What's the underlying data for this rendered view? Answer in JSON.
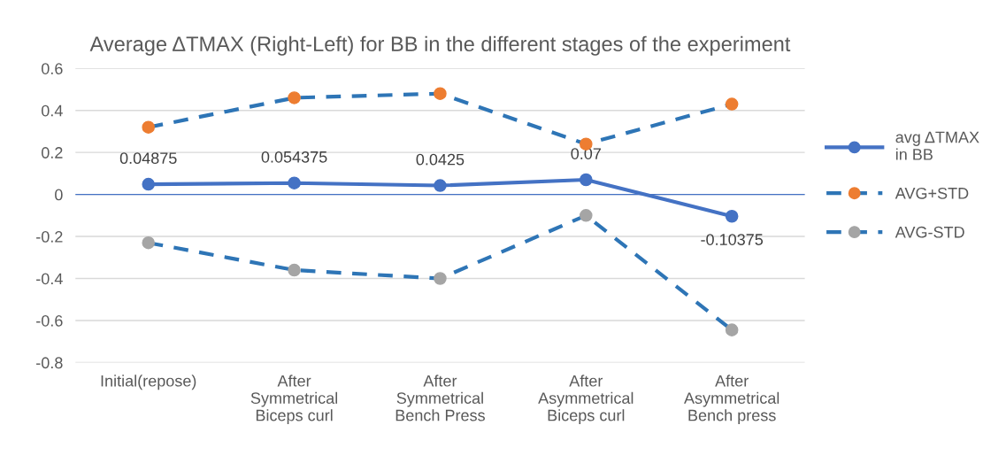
{
  "chart_data": {
    "type": "line",
    "title": "Average ΔTMAX (Right-Left) for BB in the different stages of the experiment",
    "categories": [
      "Initial(repose)",
      "After\nSymmetrical\nBiceps curl",
      "After\nSymmetrical\nBench Press",
      "After\nAsymmetrical\nBiceps curl",
      "After\nAsymmetrical\nBench press"
    ],
    "series": [
      {
        "name": "avg ΔTMAX\nin BB",
        "color": "#4472c4",
        "line_style": "solid",
        "values": [
          0.04875,
          0.054375,
          0.0425,
          0.07,
          -0.10375
        ],
        "value_labels": [
          "0.04875",
          "0.054375",
          "0.0425",
          "0.07",
          "-0.10375"
        ]
      },
      {
        "name": "AVG+STD",
        "color": "#2e75b6",
        "colors": [
          "#ed7d31",
          "#ed7d31",
          "#ed7d31",
          "#ed7d31",
          "#ed7d31"
        ],
        "line_style": "dashed",
        "values": [
          0.32,
          0.46,
          0.48,
          0.24,
          0.43
        ]
      },
      {
        "name": "AVG-STD",
        "color": "#2e75b6",
        "colors": [
          "#a5a5a5",
          "#a5a5a5",
          "#a5a5a5",
          "#a5a5a5",
          "#a5a5a5"
        ],
        "line_style": "dashed",
        "values": [
          -0.23,
          -0.36,
          -0.4,
          -0.1,
          -0.645
        ]
      }
    ],
    "ylim": [
      -0.8,
      0.6
    ],
    "yticks": [
      -0.8,
      -0.6,
      -0.4,
      -0.2,
      0,
      0.2,
      0.4,
      0.6
    ],
    "ref_lines": [
      {
        "axis": "y",
        "value": 0,
        "color": "#4472c4"
      }
    ],
    "grid": "y",
    "legend": "right",
    "marker": "circle"
  }
}
